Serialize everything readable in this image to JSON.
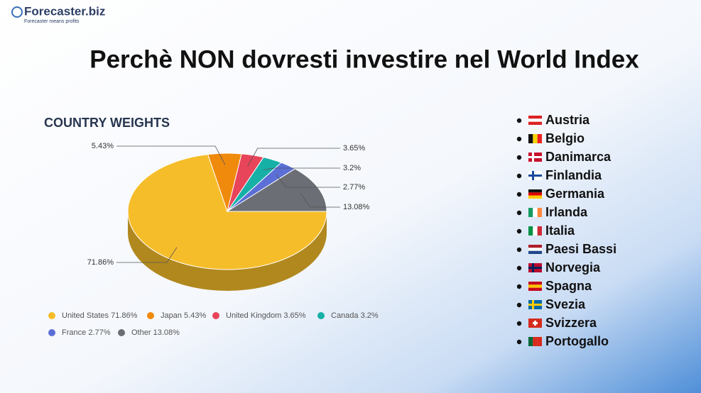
{
  "header": {
    "brand": "Forecaster.biz",
    "tagline": "Forecaster means profits",
    "title": "Perchè NON dovresti investire nel World Index"
  },
  "chart_data": {
    "type": "pie",
    "title": "COUNTRY WEIGHTS",
    "categories": [
      "United States",
      "Japan",
      "United Kingdom",
      "Canada",
      "France",
      "Other"
    ],
    "values": [
      71.86,
      5.43,
      3.65,
      3.2,
      2.77,
      13.08
    ],
    "value_labels": [
      "71.86%",
      "5.43%",
      "3.65%",
      "3.2%",
      "2.77%",
      "13.08%"
    ],
    "colors": [
      "#f6bd2a",
      "#f08a0c",
      "#e8445a",
      "#17b0a7",
      "#5b6fd6",
      "#6b6e74"
    ],
    "legend": "bottom"
  },
  "countries": [
    "Austria",
    "Belgio",
    "Danimarca",
    "Finlandia",
    "Germania",
    "Irlanda",
    "Italia",
    "Paesi Bassi",
    "Norvegia",
    "Spagna",
    "Svezia",
    "Svizzera",
    "Portogallo"
  ]
}
